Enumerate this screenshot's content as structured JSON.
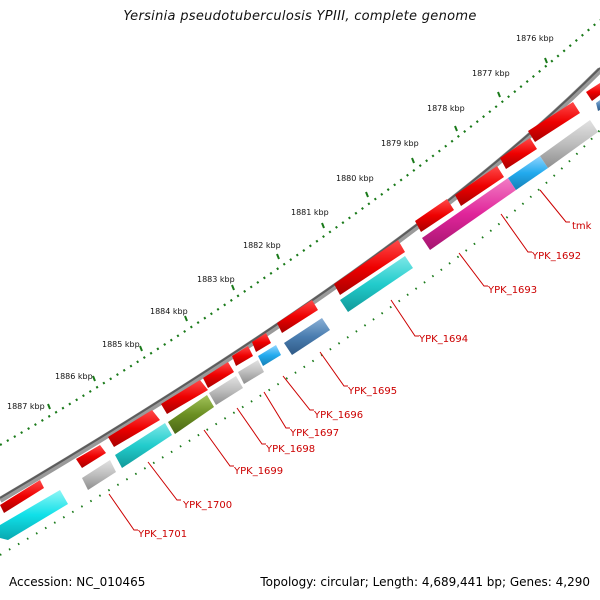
{
  "header": {
    "title": "Yersinia pseudotuberculosis YPIII, complete genome"
  },
  "footer": {
    "accession": "Accession: NC_010465",
    "summary": "Topology: circular; Length: 4,689,441 bp; Genes: 4,290"
  },
  "scale_ticks": [
    {
      "label": "1876 kbp"
    },
    {
      "label": "1877 kbp"
    },
    {
      "label": "1878 kbp"
    },
    {
      "label": "1879 kbp"
    },
    {
      "label": "1880 kbp"
    },
    {
      "label": "1881 kbp"
    },
    {
      "label": "1882 kbp"
    },
    {
      "label": "1883 kbp"
    },
    {
      "label": "1884 kbp"
    },
    {
      "label": "1885 kbp"
    },
    {
      "label": "1886 kbp"
    },
    {
      "label": "1887 kbp"
    }
  ],
  "gene_labels": [
    {
      "label": "tmk"
    },
    {
      "label": "YPK_1692"
    },
    {
      "label": "YPK_1693"
    },
    {
      "label": "YPK_1694"
    },
    {
      "label": "YPK_1695"
    },
    {
      "label": "YPK_1696"
    },
    {
      "label": "YPK_1697"
    },
    {
      "label": "YPK_1698"
    },
    {
      "label": "YPK_1699"
    },
    {
      "label": "YPK_1700"
    },
    {
      "label": "YPK_1701"
    }
  ],
  "colors": {
    "backbone": "#7a7a7a",
    "gene_red": "#ee0000",
    "scale_green": "#1a7a1a",
    "label_red": "#cc0000",
    "cyan": "#26c9c9",
    "magenta": "#e0259a",
    "sky": "#22aaee",
    "steel": "#4a7db0",
    "olive": "#6b8f22",
    "gray": "#b8b8b8"
  }
}
